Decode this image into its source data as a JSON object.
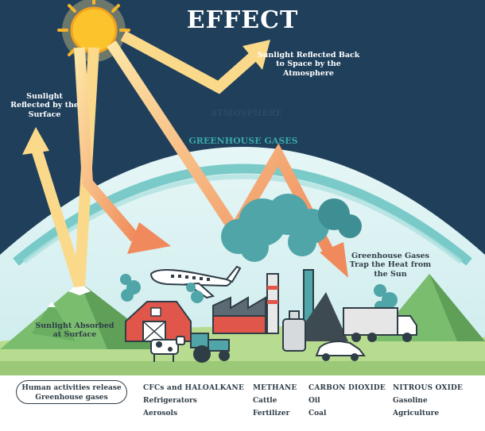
{
  "title": "EFFECT",
  "labels": {
    "reflected_space": "Sunlight Reflected Back to Space by the Atmosphere",
    "reflected_surface": "Sunlight Reflected by the Surface",
    "atmosphere": "ATMOSPHERE",
    "greenhouse_gases": "GREENHOUSE GASES",
    "trap_heat": "Greenhouse Gases Trap the Heat from the Sun",
    "absorbed": "Sunlight Absorbed at Surface"
  },
  "legend": {
    "intro": "Human activities release Greenhouse gases",
    "columns": [
      {
        "header": "CFCs and HALOALKANE",
        "items": [
          "Refrigerators",
          "Aerosols"
        ]
      },
      {
        "header": "METHANE",
        "items": [
          "Cattle",
          "Fertilizer"
        ]
      },
      {
        "header": "CARBON DIOXIDE",
        "items": [
          "Oil",
          "Coal"
        ]
      },
      {
        "header": "NITROUS OXIDE",
        "items": [
          "Gasoline",
          "Agriculture"
        ]
      }
    ]
  },
  "colors": {
    "sky": "#1f3f5b",
    "atmosphere": "#d9f1f2",
    "ghg_band": "#5fbfbd",
    "arrow_light": "#fbd98a",
    "arrow_dark": "#ef8a5f",
    "sun": "#fcc42c",
    "grass": "#b8dc8f",
    "mountain": "#7bbd6f",
    "smoke": "#4fa5a8"
  }
}
